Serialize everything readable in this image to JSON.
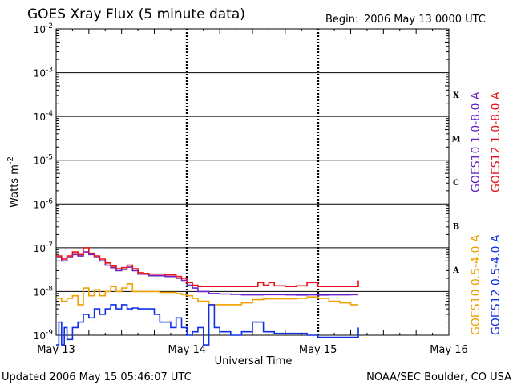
{
  "header": {
    "title": "GOES Xray Flux (5 minute data)",
    "begin_label": "Begin:",
    "begin_value": "2006 May 13 0000 UTC"
  },
  "footer": {
    "updated": "Updated 2006 May 15 05:46:07 UTC",
    "credit": "NOAA/SEC Boulder, CO USA"
  },
  "colors": {
    "goes10_long": "#6b22c7",
    "goes12_long": "#e8101a",
    "goes10_short": "#f0a000",
    "goes12_short": "#1030e8"
  },
  "chart_data": {
    "type": "line",
    "title": "GOES Xray Flux (5 minute data)",
    "xlabel": "Universal Time",
    "ylabel": "Watts m",
    "ylabel_superscript": "-2",
    "yscale": "log",
    "ylim": [
      1e-09,
      0.01
    ],
    "xlim": [
      0,
      72
    ],
    "x_unit": "hours since 2006 May 13 0000 UTC",
    "x_ticks": [
      {
        "x": 0,
        "label": "May 13"
      },
      {
        "x": 24,
        "label": "May 14"
      },
      {
        "x": 48,
        "label": "May 15"
      },
      {
        "x": 72,
        "label": "May 16"
      }
    ],
    "y_ticks": [
      {
        "value": 0.01,
        "base": "10",
        "exp": "-2"
      },
      {
        "value": 0.001,
        "base": "10",
        "exp": "-3"
      },
      {
        "value": 0.0001,
        "base": "10",
        "exp": "-4"
      },
      {
        "value": 1e-05,
        "base": "10",
        "exp": "-5"
      },
      {
        "value": 1e-06,
        "base": "10",
        "exp": "-6"
      },
      {
        "value": 1e-07,
        "base": "10",
        "exp": "-7"
      },
      {
        "value": 1e-08,
        "base": "10",
        "exp": "-8"
      },
      {
        "value": 1e-09,
        "base": "10",
        "exp": "-9"
      }
    ],
    "flare_classes": [
      {
        "label": "X",
        "center": 0.000316
      },
      {
        "label": "M",
        "center": 3.16e-05
      },
      {
        "label": "C",
        "center": 3.16e-06
      },
      {
        "label": "B",
        "center": 3.16e-07
      },
      {
        "label": "A",
        "center": 3.16e-08
      }
    ],
    "series": [
      {
        "name": "GOES10 1.0-8.0 A",
        "color": "#6b22c7",
        "x": [
          0,
          1,
          2,
          3,
          4,
          5,
          6,
          7,
          8,
          9,
          10,
          11,
          12,
          13,
          14,
          15,
          16,
          17,
          18,
          19,
          20,
          21,
          22,
          23,
          24,
          25,
          26,
          28,
          30,
          32,
          34,
          36,
          38,
          40,
          42,
          44,
          46,
          48,
          50,
          52,
          54,
          55.4
        ],
        "y": [
          6e-08,
          5e-08,
          6e-08,
          7e-08,
          6.5e-08,
          8e-08,
          7e-08,
          6e-08,
          5e-08,
          4e-08,
          3.5e-08,
          3e-08,
          3.2e-08,
          3.6e-08,
          3e-08,
          2.5e-08,
          2.5e-08,
          2.3e-08,
          2.3e-08,
          2.3e-08,
          2.2e-08,
          2.2e-08,
          2e-08,
          1.8e-08,
          1.4e-08,
          1.2e-08,
          1e-08,
          9e-09,
          8.8e-09,
          8.6e-09,
          8.4e-09,
          8.4e-09,
          8.5e-09,
          8.5e-09,
          8.4e-09,
          8.3e-09,
          8.4e-09,
          8.3e-09,
          8.4e-09,
          8.4e-09,
          8.5e-09,
          8.5e-09
        ]
      },
      {
        "name": "GOES12 1.0-8.0 A",
        "color": "#e8101a",
        "x": [
          0,
          1,
          2,
          3,
          4,
          5,
          6,
          7,
          8,
          9,
          10,
          11,
          12,
          13,
          14,
          15,
          16,
          17,
          18,
          19,
          20,
          21,
          22,
          23,
          24,
          25,
          26,
          28,
          30,
          32,
          34,
          36,
          37,
          38,
          39,
          40,
          42,
          44,
          46,
          48,
          50,
          52,
          54,
          55.4
        ],
        "y": [
          6.5e-08,
          5.5e-08,
          6.5e-08,
          8e-08,
          7e-08,
          1e-07,
          7.5e-08,
          6.5e-08,
          5.5e-08,
          4.5e-08,
          3.8e-08,
          3.3e-08,
          3.5e-08,
          4e-08,
          3.3e-08,
          2.7e-08,
          2.6e-08,
          2.5e-08,
          2.5e-08,
          2.5e-08,
          2.4e-08,
          2.4e-08,
          2.2e-08,
          2e-08,
          1.6e-08,
          1.4e-08,
          1.3e-08,
          1.3e-08,
          1.3e-08,
          1.3e-08,
          1.3e-08,
          1.3e-08,
          1.6e-08,
          1.4e-08,
          1.6e-08,
          1.35e-08,
          1.3e-08,
          1.35e-08,
          1.6e-08,
          1.3e-08,
          1.3e-08,
          1.3e-08,
          1.3e-08,
          1.8e-08
        ]
      },
      {
        "name": "GOES10 0.5-4.0 A",
        "color": "#f0a000",
        "x": [
          0,
          1,
          2,
          3,
          4,
          5,
          6,
          7,
          8,
          9,
          10,
          11,
          12,
          13,
          14,
          15,
          16,
          17,
          18,
          19,
          20,
          21,
          22,
          23,
          24,
          25,
          26,
          28,
          30,
          32,
          34,
          36,
          38,
          40,
          42,
          44,
          46,
          48,
          50,
          52,
          54,
          55.4
        ],
        "y": [
          7e-09,
          6e-09,
          7e-09,
          8e-09,
          5e-09,
          1.2e-08,
          8e-09,
          1.1e-08,
          8e-09,
          1e-08,
          1.3e-08,
          1e-08,
          1.2e-08,
          1.5e-08,
          1e-08,
          1e-08,
          1e-08,
          1e-08,
          1e-08,
          9.5e-09,
          9.5e-09,
          9.5e-09,
          9e-09,
          8.5e-09,
          8e-09,
          7e-09,
          6e-09,
          5e-09,
          5e-09,
          5e-09,
          5.5e-09,
          6.5e-09,
          6.8e-09,
          6.8e-09,
          6.8e-09,
          7e-09,
          7.5e-09,
          7e-09,
          6e-09,
          5.5e-09,
          5e-09,
          5e-09
        ]
      },
      {
        "name": "GOES12 0.5-4.0 A",
        "color": "#1030e8",
        "x": [
          0,
          0.5,
          1,
          1.5,
          2,
          3,
          4,
          5,
          6,
          7,
          8,
          9,
          10,
          11,
          12,
          13,
          14,
          15,
          16,
          17,
          18,
          19,
          20,
          21,
          22,
          23,
          24,
          25,
          26,
          27,
          28,
          29,
          30,
          32,
          34,
          36,
          38,
          40,
          42,
          44,
          46,
          48,
          55.4
        ],
        "y": [
          6e-10,
          2e-09,
          6e-10,
          1.5e-09,
          8e-10,
          1.5e-09,
          2e-09,
          3e-09,
          2.5e-09,
          4e-09,
          3e-09,
          4e-09,
          5e-09,
          4e-09,
          5e-09,
          4e-09,
          4.2e-09,
          4e-09,
          4e-09,
          4e-09,
          3e-09,
          2e-09,
          2e-09,
          1.5e-09,
          2.5e-09,
          1.5e-09,
          1e-09,
          1.2e-09,
          1.5e-09,
          6e-10,
          5e-09,
          1.5e-09,
          1.2e-09,
          1e-09,
          1.2e-09,
          2e-09,
          1.2e-09,
          1.1e-09,
          1.1e-09,
          1.1e-09,
          1e-09,
          9e-10,
          1.5e-09
        ]
      }
    ]
  }
}
